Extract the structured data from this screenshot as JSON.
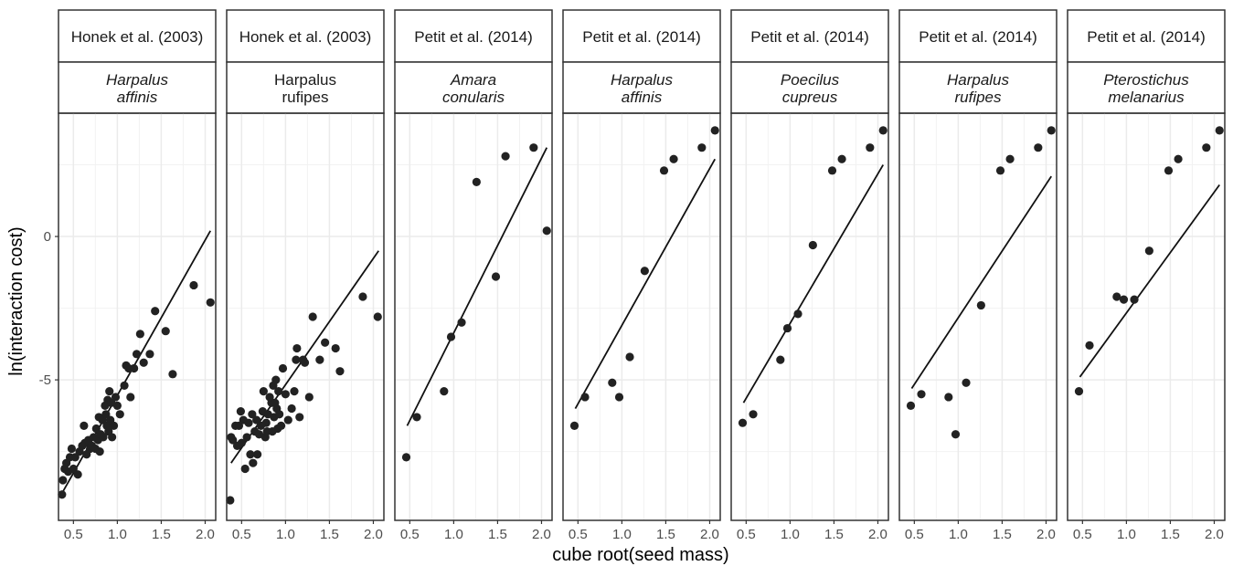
{
  "chart_data": {
    "type": "scatter",
    "facet_layout": "1 row x 7 panels, shared y axis",
    "xlabel": "cube root(seed mass)",
    "ylabel": "ln(interaction cost)",
    "xlim": [
      0.33,
      2.12
    ],
    "ylim": [
      -9.9,
      4.3
    ],
    "x_ticks": [
      0.5,
      1.0,
      1.5,
      2.0
    ],
    "x_tick_labels": [
      "0.5",
      "1.0",
      "1.5",
      "2.0"
    ],
    "y_ticks": [
      0,
      -5
    ],
    "y_tick_labels": [
      "0",
      "-5"
    ],
    "grid": true,
    "colors": {
      "points": "#222222",
      "line": "#111111",
      "strip_bg": "#ffffff",
      "panel_border": "#333333",
      "grid": "#ebebeb"
    },
    "panels": [
      {
        "source": "Honek et al. (2003)",
        "species": [
          "Harpalus",
          "affinis"
        ],
        "italic": true,
        "fit": {
          "x": [
            0.38,
            2.06
          ],
          "y": [
            -8.9,
            0.2
          ]
        },
        "points": [
          [
            0.37,
            -9.0
          ],
          [
            0.38,
            -8.5
          ],
          [
            0.4,
            -8.1
          ],
          [
            0.42,
            -7.9
          ],
          [
            0.44,
            -8.2
          ],
          [
            0.46,
            -7.7
          ],
          [
            0.48,
            -7.4
          ],
          [
            0.5,
            -8.1
          ],
          [
            0.52,
            -7.7
          ],
          [
            0.55,
            -8.3
          ],
          [
            0.57,
            -7.5
          ],
          [
            0.6,
            -7.3
          ],
          [
            0.62,
            -6.6
          ],
          [
            0.63,
            -7.2
          ],
          [
            0.65,
            -7.6
          ],
          [
            0.67,
            -7.1
          ],
          [
            0.69,
            -7.4
          ],
          [
            0.71,
            -7.3
          ],
          [
            0.73,
            -7.0
          ],
          [
            0.75,
            -7.4
          ],
          [
            0.76,
            -6.7
          ],
          [
            0.78,
            -7.1
          ],
          [
            0.79,
            -6.3
          ],
          [
            0.8,
            -7.5
          ],
          [
            0.81,
            -6.9
          ],
          [
            0.83,
            -6.4
          ],
          [
            0.84,
            -7.0
          ],
          [
            0.86,
            -5.9
          ],
          [
            0.87,
            -6.2
          ],
          [
            0.88,
            -6.6
          ],
          [
            0.89,
            -5.7
          ],
          [
            0.9,
            -6.8
          ],
          [
            0.91,
            -5.4
          ],
          [
            0.92,
            -6.4
          ],
          [
            0.93,
            -5.8
          ],
          [
            0.94,
            -7.0
          ],
          [
            0.96,
            -6.6
          ],
          [
            0.98,
            -5.6
          ],
          [
            1.0,
            -5.9
          ],
          [
            1.03,
            -6.2
          ],
          [
            1.08,
            -5.2
          ],
          [
            1.1,
            -4.5
          ],
          [
            1.13,
            -4.6
          ],
          [
            1.15,
            -5.6
          ],
          [
            1.19,
            -4.6
          ],
          [
            1.22,
            -4.1
          ],
          [
            1.26,
            -3.4
          ],
          [
            1.3,
            -4.4
          ],
          [
            1.37,
            -4.1
          ],
          [
            1.43,
            -2.6
          ],
          [
            1.55,
            -3.3
          ],
          [
            1.63,
            -4.8
          ],
          [
            1.87,
            -1.7
          ],
          [
            2.06,
            -2.3
          ]
        ]
      },
      {
        "source": "Honek et al. (2003)",
        "species": [
          "Harpalus",
          "rufipes"
        ],
        "italic": false,
        "fit": {
          "x": [
            0.38,
            2.06
          ],
          "y": [
            -7.9,
            -0.5
          ]
        },
        "points": [
          [
            0.37,
            -9.2
          ],
          [
            0.38,
            -7.0
          ],
          [
            0.4,
            -7.1
          ],
          [
            0.43,
            -6.6
          ],
          [
            0.45,
            -7.3
          ],
          [
            0.47,
            -6.6
          ],
          [
            0.49,
            -6.1
          ],
          [
            0.5,
            -7.2
          ],
          [
            0.52,
            -6.4
          ],
          [
            0.54,
            -8.1
          ],
          [
            0.56,
            -7.0
          ],
          [
            0.58,
            -6.5
          ],
          [
            0.6,
            -7.6
          ],
          [
            0.62,
            -6.2
          ],
          [
            0.63,
            -7.9
          ],
          [
            0.65,
            -6.8
          ],
          [
            0.67,
            -6.4
          ],
          [
            0.68,
            -7.6
          ],
          [
            0.7,
            -6.9
          ],
          [
            0.72,
            -6.6
          ],
          [
            0.74,
            -6.1
          ],
          [
            0.75,
            -5.4
          ],
          [
            0.77,
            -7.0
          ],
          [
            0.78,
            -6.5
          ],
          [
            0.79,
            -6.8
          ],
          [
            0.8,
            -6.2
          ],
          [
            0.82,
            -5.6
          ],
          [
            0.84,
            -5.8
          ],
          [
            0.85,
            -6.8
          ],
          [
            0.86,
            -5.2
          ],
          [
            0.87,
            -6.3
          ],
          [
            0.88,
            -5.8
          ],
          [
            0.89,
            -5.0
          ],
          [
            0.9,
            -6.0
          ],
          [
            0.91,
            -6.7
          ],
          [
            0.92,
            -5.4
          ],
          [
            0.93,
            -6.2
          ],
          [
            0.95,
            -6.6
          ],
          [
            0.97,
            -4.6
          ],
          [
            1.0,
            -5.5
          ],
          [
            1.03,
            -6.4
          ],
          [
            1.07,
            -6.0
          ],
          [
            1.1,
            -5.4
          ],
          [
            1.12,
            -4.3
          ],
          [
            1.13,
            -3.9
          ],
          [
            1.16,
            -6.3
          ],
          [
            1.2,
            -4.3
          ],
          [
            1.22,
            -4.4
          ],
          [
            1.27,
            -5.6
          ],
          [
            1.31,
            -2.8
          ],
          [
            1.39,
            -4.3
          ],
          [
            1.45,
            -3.7
          ],
          [
            1.57,
            -3.9
          ],
          [
            1.62,
            -4.7
          ],
          [
            1.88,
            -2.1
          ],
          [
            2.05,
            -2.8
          ]
        ]
      },
      {
        "source": "Petit et al. (2014)",
        "species": [
          "Amara",
          "conularis"
        ],
        "italic": true,
        "fit": {
          "x": [
            0.47,
            2.06
          ],
          "y": [
            -6.6,
            3.1
          ]
        },
        "points": [
          [
            0.46,
            -7.7
          ],
          [
            0.58,
            -6.3
          ],
          [
            0.89,
            -5.4
          ],
          [
            0.97,
            -3.5
          ],
          [
            1.09,
            -3.0
          ],
          [
            1.26,
            1.9
          ],
          [
            1.48,
            -1.4
          ],
          [
            1.59,
            2.8
          ],
          [
            1.91,
            3.1
          ],
          [
            2.06,
            0.2
          ]
        ]
      },
      {
        "source": "Petit et al. (2014)",
        "species": [
          "Harpalus",
          "affinis"
        ],
        "italic": true,
        "fit": {
          "x": [
            0.47,
            2.06
          ],
          "y": [
            -6.0,
            2.7
          ]
        },
        "points": [
          [
            0.46,
            -6.6
          ],
          [
            0.58,
            -5.6
          ],
          [
            0.89,
            -5.1
          ],
          [
            0.97,
            -5.6
          ],
          [
            1.09,
            -4.2
          ],
          [
            1.26,
            -1.2
          ],
          [
            1.48,
            2.3
          ],
          [
            1.59,
            2.7
          ],
          [
            1.91,
            3.1
          ],
          [
            2.06,
            3.7
          ]
        ]
      },
      {
        "source": "Petit et al. (2014)",
        "species": [
          "Poecilus",
          "cupreus"
        ],
        "italic": true,
        "fit": {
          "x": [
            0.47,
            2.06
          ],
          "y": [
            -5.8,
            2.5
          ]
        },
        "points": [
          [
            0.46,
            -6.5
          ],
          [
            0.58,
            -6.2
          ],
          [
            0.89,
            -4.3
          ],
          [
            0.97,
            -3.2
          ],
          [
            1.09,
            -2.7
          ],
          [
            1.26,
            -0.3
          ],
          [
            1.48,
            2.3
          ],
          [
            1.59,
            2.7
          ],
          [
            1.91,
            3.1
          ],
          [
            2.06,
            3.7
          ]
        ]
      },
      {
        "source": "Petit et al. (2014)",
        "species": [
          "Harpalus",
          "rufipes"
        ],
        "italic": true,
        "fit": {
          "x": [
            0.47,
            2.06
          ],
          "y": [
            -5.3,
            2.1
          ]
        },
        "points": [
          [
            0.46,
            -5.9
          ],
          [
            0.58,
            -5.5
          ],
          [
            0.89,
            -5.6
          ],
          [
            0.97,
            -6.9
          ],
          [
            1.09,
            -5.1
          ],
          [
            1.26,
            -2.4
          ],
          [
            1.48,
            2.3
          ],
          [
            1.59,
            2.7
          ],
          [
            1.91,
            3.1
          ],
          [
            2.06,
            3.7
          ]
        ]
      },
      {
        "source": "Petit et al. (2014)",
        "species": [
          "Pterostichus",
          "melanarius"
        ],
        "italic": true,
        "fit": {
          "x": [
            0.47,
            2.06
          ],
          "y": [
            -4.9,
            1.8
          ]
        },
        "points": [
          [
            0.46,
            -5.4
          ],
          [
            0.58,
            -3.8
          ],
          [
            0.89,
            -2.1
          ],
          [
            0.97,
            -2.2
          ],
          [
            1.09,
            -2.2
          ],
          [
            1.26,
            -0.5
          ],
          [
            1.48,
            2.3
          ],
          [
            1.59,
            2.7
          ],
          [
            1.91,
            3.1
          ],
          [
            2.06,
            3.7
          ]
        ]
      }
    ]
  }
}
